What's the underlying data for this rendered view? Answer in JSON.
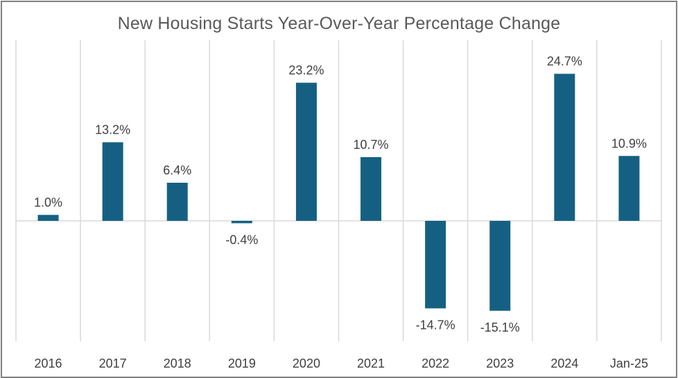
{
  "chart_data": {
    "type": "bar",
    "title": "New Housing Starts Year-Over-Year Percentage Change",
    "xlabel": "",
    "ylabel": "",
    "categories": [
      "2016",
      "2017",
      "2018",
      "2019",
      "2020",
      "2021",
      "2022",
      "2023",
      "2024",
      "Jan-25"
    ],
    "values": [
      1.0,
      13.2,
      6.4,
      -0.4,
      23.2,
      10.7,
      -14.7,
      -15.1,
      24.7,
      10.9
    ],
    "data_labels": [
      "1.0%",
      "13.2%",
      "6.4%",
      "-0.4%",
      "23.2%",
      "10.7%",
      "-14.7%",
      "-15.1%",
      "24.7%",
      "10.9%"
    ],
    "ylim": [
      -20,
      30
    ],
    "grid": "vertical",
    "bar_color": "#156082",
    "gridline_color": "#d9d9d9",
    "zero_line_color": "#d9d9d9"
  }
}
